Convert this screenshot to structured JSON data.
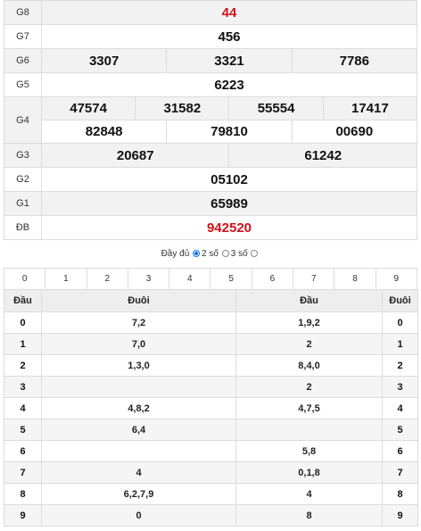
{
  "results": {
    "g8": {
      "label": "G8",
      "values": [
        "44"
      ]
    },
    "g7": {
      "label": "G7",
      "values": [
        "456"
      ]
    },
    "g6": {
      "label": "G6",
      "values": [
        "3307",
        "3321",
        "7786"
      ]
    },
    "g5": {
      "label": "G5",
      "values": [
        "6223"
      ]
    },
    "g4": {
      "label": "G4",
      "values": [
        "47574",
        "31582",
        "55554",
        "17417",
        "82848",
        "79810",
        "00690"
      ]
    },
    "g3": {
      "label": "G3",
      "values": [
        "20687",
        "61242"
      ]
    },
    "g2": {
      "label": "G2",
      "values": [
        "05102"
      ]
    },
    "g1": {
      "label": "G1",
      "values": [
        "65989"
      ]
    },
    "db": {
      "label": "ĐB",
      "values": [
        "942520"
      ]
    }
  },
  "options": {
    "full_label": "Đầy đủ",
    "two_label": "2 số",
    "three_label": "3 số",
    "selected": "2 số"
  },
  "digits": [
    "0",
    "1",
    "2",
    "3",
    "4",
    "5",
    "6",
    "7",
    "8",
    "9"
  ],
  "loto": {
    "headers": {
      "dau": "Đầu",
      "duoi": "Đuôi",
      "dau2": "Đầu",
      "duoi2": "Đuôi"
    },
    "rows": [
      {
        "key": "0",
        "duoi": "7,2",
        "dau": "1,9,2",
        "key2": "0"
      },
      {
        "key": "1",
        "duoi": "7,0",
        "dau": "2",
        "key2": "1"
      },
      {
        "key": "2",
        "duoi": "1,3,0",
        "dau": "8,4,0",
        "key2": "2"
      },
      {
        "key": "3",
        "duoi": "",
        "dau": "2",
        "key2": "3"
      },
      {
        "key": "4",
        "duoi": "4,8,2",
        "dau": "4,7,5",
        "key2": "4"
      },
      {
        "key": "5",
        "duoi": "6,4",
        "dau": "",
        "key2": "5"
      },
      {
        "key": "6",
        "duoi": "",
        "dau": "5,8",
        "key2": "6"
      },
      {
        "key": "7",
        "duoi": "4",
        "dau": "0,1,8",
        "key2": "7"
      },
      {
        "key": "8",
        "duoi": "6,2,7,9",
        "dau": "4",
        "key2": "8"
      },
      {
        "key": "9",
        "duoi": "0",
        "dau": "8",
        "key2": "9"
      }
    ]
  },
  "colors": {
    "special": "#d2121a",
    "g8": "#d2121a"
  }
}
